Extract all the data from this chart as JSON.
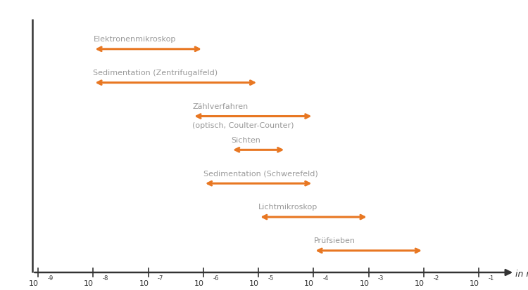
{
  "arrow_color": "#E87722",
  "text_color": "#999999",
  "axis_color": "#333333",
  "bars": [
    {
      "label": "Elektronenmikroskop",
      "label2": "",
      "x_start": -8,
      "x_end": -6,
      "y": 7
    },
    {
      "label": "Sedimentation (Zentrifugalfeld)",
      "label2": "",
      "x_start": -8,
      "x_end": -5,
      "y": 6
    },
    {
      "label": "Zählverfahren",
      "label2": "(optisch, Coulter-Counter)",
      "x_start": -6.2,
      "x_end": -4,
      "y": 5
    },
    {
      "label": "Sichten",
      "label2": "",
      "x_start": -5.5,
      "x_end": -4.5,
      "y": 4
    },
    {
      "label": "Sedimentation (Schwerefeld)",
      "label2": "",
      "x_start": -6,
      "x_end": -4,
      "y": 3
    },
    {
      "label": "Lichtmikroskop",
      "label2": "",
      "x_start": -5,
      "x_end": -3,
      "y": 2
    },
    {
      "label": "Prüfsieben",
      "label2": "",
      "x_start": -4,
      "x_end": -2,
      "y": 1
    }
  ],
  "x_ticks": [
    -9,
    -8,
    -7,
    -6,
    -5,
    -4,
    -3,
    -2,
    -1
  ],
  "x_min": -9.5,
  "x_max": -0.3,
  "y_min": 0,
  "y_max": 8.2,
  "figwidth": 7.5,
  "figheight": 4.13,
  "dpi": 100
}
